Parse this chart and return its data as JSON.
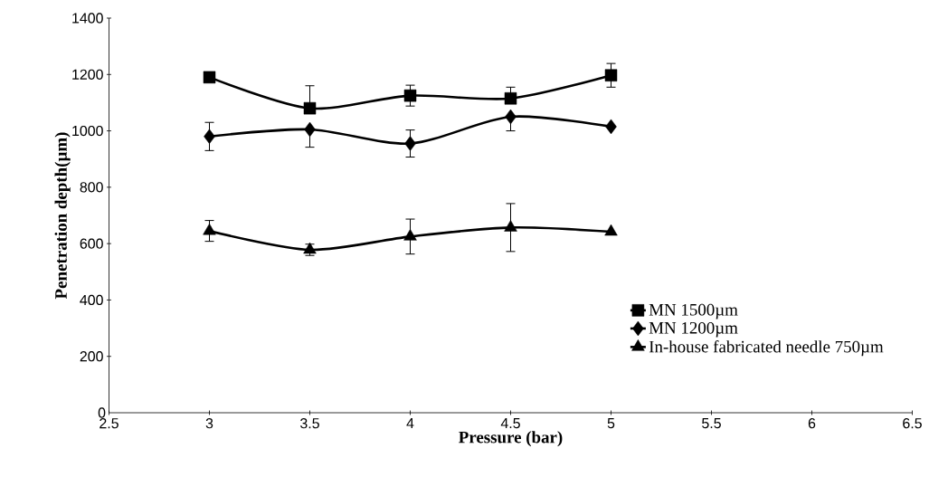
{
  "chart_data": {
    "type": "line",
    "xlabel": "Pressure (bar)",
    "ylabel": "Penetration depth(µm)",
    "x": [
      3,
      3.5,
      4,
      4.5,
      5
    ],
    "xlim": [
      2.5,
      6.5
    ],
    "xticks": [
      2.5,
      3,
      3.5,
      4,
      4.5,
      5,
      5.5,
      6,
      6.5
    ],
    "ylim": [
      0,
      1400
    ],
    "yticks": [
      0,
      200,
      400,
      600,
      800,
      1000,
      1200,
      1400
    ],
    "grid": false,
    "legend": "bottom right",
    "series": [
      {
        "name": "MN 1500µm",
        "color": "#000000",
        "marker": "square",
        "values": [
          1190,
          1080,
          1125,
          1115,
          1197
        ],
        "errors": [
          null,
          [
            1080,
            1160
          ],
          37,
          [
            1115,
            1155
          ],
          42
        ]
      },
      {
        "name": "MN 1200µm",
        "color": "#000000",
        "marker": "diamond",
        "values": [
          980,
          1005,
          955,
          1050,
          1015
        ],
        "errors": [
          50,
          [
            942,
            1005
          ],
          48,
          [
            1000,
            1050
          ],
          null
        ]
      },
      {
        "name": "In-house fabricated needle 750µm",
        "color": "#000000",
        "marker": "triangle",
        "values": [
          645,
          578,
          625,
          657,
          642
        ],
        "errors": [
          37,
          20,
          62,
          85,
          null
        ]
      }
    ]
  }
}
